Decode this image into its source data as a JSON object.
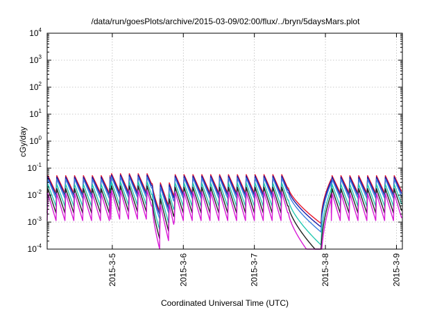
{
  "chart_data": {
    "type": "line",
    "title": "/data/run/goesPlots/archive/2015-03-09/02:00/flux/../bryn/5daysMars.plot",
    "xlabel": "Coordinated Universal Time (UTC)",
    "ylabel": "cGy/day",
    "yscale": "log",
    "ylim": [
      0.0001,
      10000
    ],
    "y_ticks": [
      {
        "base": "10",
        "exp": "4"
      },
      {
        "base": "10",
        "exp": "3"
      },
      {
        "base": "10",
        "exp": "2"
      },
      {
        "base": "10",
        "exp": "1"
      },
      {
        "base": "10",
        "exp": "0"
      },
      {
        "base": "10",
        "exp": "-1"
      },
      {
        "base": "10",
        "exp": "-2"
      },
      {
        "base": "10",
        "exp": "-3"
      },
      {
        "base": "10",
        "exp": "-4"
      }
    ],
    "x_range_days": [
      "2015-03-04 02:00",
      "2015-03-09 02:00"
    ],
    "x_ticks": [
      "2015-3-5",
      "2015-3-6",
      "2015-3-7",
      "2015-3-8",
      "2015-3-9"
    ],
    "grid": true,
    "legend": "none",
    "series_colors": [
      "#e8162b",
      "#1a1aa8",
      "#3a7de0",
      "#22c8b0",
      "#222222",
      "#d81bd6"
    ],
    "series_offsets_log10": [
      0.0,
      -0.05,
      -0.12,
      -0.3,
      -0.45,
      -0.62
    ],
    "profile": {
      "segments": [
        {
          "start": "2015-03-04 02:00",
          "end": "2015-03-04 23:30",
          "peak": 0.055,
          "base": 0.012,
          "period_hours": 3
        },
        {
          "start": "2015-03-04 23:30",
          "end": "2015-03-05 13:30",
          "peak": 0.065,
          "base": 0.013,
          "period_hours": 3
        },
        {
          "start": "2015-03-05 13:30",
          "end": "2015-03-05 16:00",
          "decay_to": 0.0025
        },
        {
          "start": "2015-03-05 16:00",
          "end": "2015-03-05 21:00",
          "peak": 0.03,
          "base": 0.004,
          "period_hours": 3
        },
        {
          "start": "2015-03-05 21:00",
          "end": "2015-03-07 11:30",
          "peak": 0.06,
          "base": 0.012,
          "period_hours": 3
        },
        {
          "start": "2015-03-07 11:30",
          "end": "2015-03-07 22:30",
          "decay_to": 0.0009
        },
        {
          "start": "2015-03-07 22:30",
          "end": "2015-03-08 02:00",
          "recover_to": 0.04
        },
        {
          "start": "2015-03-08 02:00",
          "end": "2015-03-09 02:00",
          "peak": 0.055,
          "base": 0.012,
          "period_hours": 3
        }
      ]
    }
  }
}
